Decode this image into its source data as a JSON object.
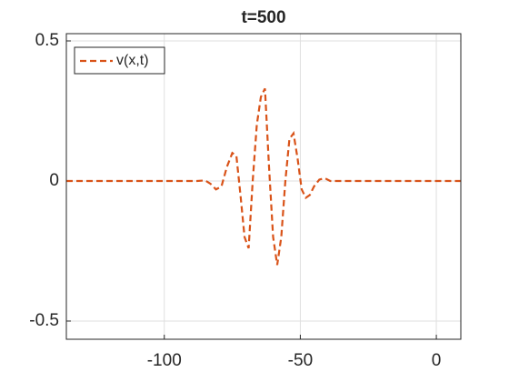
{
  "chart_data": {
    "type": "line",
    "title": "t=500",
    "x": [
      -136,
      -120,
      -100,
      -88,
      -85,
      -83,
      -81,
      -79,
      -77,
      -75,
      -73.5,
      -72,
      -70.5,
      -69,
      -67.5,
      -66,
      -64.5,
      -63,
      -61.5,
      -60,
      -58.5,
      -57,
      -55.5,
      -54,
      -52.5,
      -51,
      -49.5,
      -48,
      -46.5,
      -45,
      -43,
      -41,
      -39,
      -36,
      -20,
      0,
      9
    ],
    "series": [
      {
        "name": "v(x,t)",
        "color": "#D95319",
        "values": [
          0,
          0,
          0,
          0,
          0.002,
          -0.01,
          -0.03,
          -0.02,
          0.05,
          0.1,
          0.09,
          -0.05,
          -0.2,
          -0.24,
          0.0,
          0.2,
          0.3,
          0.33,
          0.05,
          -0.2,
          -0.3,
          -0.2,
          0.0,
          0.15,
          0.17,
          0.08,
          -0.03,
          -0.06,
          -0.05,
          -0.02,
          0.005,
          0.01,
          0.0,
          0,
          0,
          0,
          0
        ]
      }
    ],
    "xlim": [
      -136,
      9
    ],
    "ylim": [
      -0.565,
      0.526
    ],
    "xticks": [
      -100,
      -50,
      0
    ],
    "yticks": [
      -0.5,
      0,
      0.5
    ],
    "grid": true,
    "legend": "upper left",
    "line_style": "dashed"
  }
}
